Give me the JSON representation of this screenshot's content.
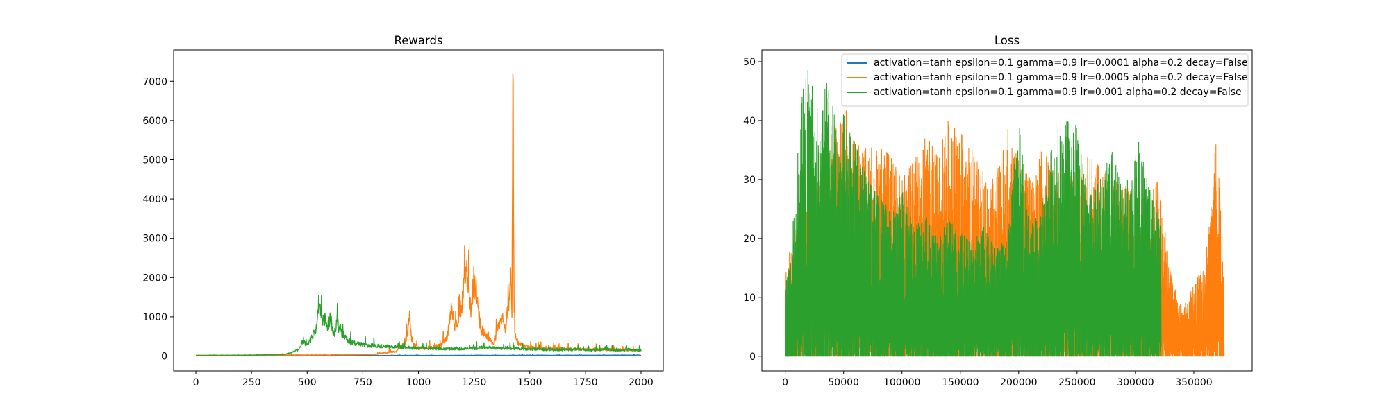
{
  "chart_data": [
    {
      "type": "line",
      "title": "Rewards",
      "xlabel": "",
      "ylabel": "",
      "xlim": [
        -100,
        2100
      ],
      "ylim": [
        -380,
        7800
      ],
      "xticks": [
        0,
        250,
        500,
        750,
        1000,
        1250,
        1500,
        1750,
        2000
      ],
      "yticks": [
        0,
        1000,
        2000,
        3000,
        4000,
        5000,
        6000,
        7000
      ],
      "legend": null,
      "series": [
        {
          "color": "#1f77b4",
          "x": [
            0,
            100,
            200,
            300,
            400,
            500,
            600,
            700,
            800,
            900,
            1000,
            1100,
            1200,
            1300,
            1400,
            1500,
            1600,
            1700,
            1800,
            1900,
            2000
          ],
          "values": [
            10,
            10,
            12,
            11,
            12,
            14,
            13,
            15,
            14,
            16,
            17,
            15,
            18,
            19,
            17,
            20,
            19,
            21,
            20,
            22,
            21
          ]
        },
        {
          "color": "#ff7f0e",
          "x": [
            0,
            200,
            400,
            600,
            800,
            900,
            940,
            955,
            960,
            965,
            975,
            1000,
            1050,
            1100,
            1130,
            1150,
            1165,
            1180,
            1200,
            1215,
            1225,
            1235,
            1250,
            1265,
            1280,
            1300,
            1320,
            1340,
            1360,
            1380,
            1390,
            1405,
            1415,
            1420,
            1425,
            1428,
            1430,
            1433,
            1440,
            1450,
            1480,
            1520,
            1560,
            1600,
            1650,
            1700,
            1750,
            1800,
            1850,
            1900,
            1950,
            2000
          ],
          "values": [
            20,
            22,
            25,
            28,
            40,
            120,
            350,
            650,
            1000,
            600,
            320,
            200,
            220,
            260,
            500,
            1250,
            700,
            1000,
            1450,
            2200,
            1700,
            1200,
            2000,
            1300,
            700,
            550,
            400,
            300,
            800,
            1000,
            650,
            1350,
            2100,
            900,
            7450,
            3000,
            1200,
            550,
            420,
            320,
            240,
            210,
            200,
            190,
            185,
            180,
            175,
            170,
            165,
            160,
            155,
            150
          ]
        },
        {
          "color": "#2ca02c",
          "x": [
            0,
            200,
            400,
            460,
            480,
            500,
            520,
            540,
            555,
            565,
            575,
            590,
            605,
            620,
            635,
            650,
            665,
            680,
            700,
            730,
            780,
            850,
            900,
            1000,
            1100,
            1200,
            1300,
            1400,
            1500,
            1600,
            1700,
            1800,
            1850,
            1900,
            1950,
            2000
          ],
          "values": [
            15,
            18,
            40,
            150,
            380,
            260,
            450,
            700,
            1520,
            850,
            1050,
            700,
            980,
            520,
            850,
            600,
            520,
            420,
            350,
            300,
            270,
            250,
            230,
            200,
            190,
            180,
            220,
            200,
            180,
            160,
            170,
            150,
            180,
            130,
            170,
            140
          ]
        }
      ]
    },
    {
      "type": "line",
      "title": "Loss",
      "xlabel": "",
      "ylabel": "",
      "xlim": [
        -20000,
        400000
      ],
      "ylim": [
        -2.5,
        52.0
      ],
      "xticks": [
        0,
        50000,
        100000,
        150000,
        200000,
        250000,
        300000,
        350000
      ],
      "yticks": [
        0,
        10,
        20,
        30,
        40,
        50
      ],
      "legend": "upper right",
      "series": [
        {
          "name": "activation=tanh epsilon=0.1 gamma=0.9 lr=0.0001 alpha=0.2 decay=False",
          "color": "#1f77b4",
          "x": [
            0,
            3000
          ],
          "values": [
            0,
            8
          ]
        },
        {
          "name": "activation=tanh epsilon=0.1 gamma=0.9 lr=0.0005 alpha=0.2 decay=False",
          "color": "#ff7f0e",
          "x": [
            0,
            10000,
            20000,
            30000,
            40000,
            50000,
            60000,
            70000,
            80000,
            90000,
            100000,
            110000,
            120000,
            130000,
            140000,
            150000,
            160000,
            170000,
            180000,
            190000,
            200000,
            210000,
            220000,
            230000,
            240000,
            250000,
            260000,
            270000,
            280000,
            290000,
            300000,
            310000,
            320000,
            330000,
            340000,
            350000,
            360000,
            370000,
            376000
          ],
          "values": [
            15,
            22,
            28,
            32,
            38,
            43,
            37,
            35,
            36,
            34,
            30,
            33,
            38,
            34,
            41,
            38,
            35,
            32,
            30,
            39,
            33,
            30,
            35,
            32,
            30,
            31,
            34,
            32,
            30,
            29,
            28,
            27,
            30,
            14,
            8,
            12,
            16,
            39,
            10
          ]
        },
        {
          "name": "activation=tanh epsilon=0.1 gamma=0.9 lr=0.001 alpha=0.2 decay=False",
          "color": "#2ca02c",
          "x": [
            0,
            5000,
            10000,
            15000,
            20000,
            25000,
            30000,
            35000,
            40000,
            45000,
            50000,
            55000,
            60000,
            70000,
            80000,
            90000,
            100000,
            110000,
            120000,
            130000,
            140000,
            150000,
            160000,
            170000,
            180000,
            190000,
            200000,
            210000,
            220000,
            230000,
            240000,
            250000,
            260000,
            270000,
            280000,
            290000,
            300000,
            310000,
            322000
          ],
          "values": [
            12,
            16,
            35,
            45,
            49,
            44,
            40,
            47,
            43,
            39,
            41,
            38,
            36,
            30,
            27,
            25,
            28,
            22,
            24,
            20,
            23,
            21,
            19,
            22,
            18,
            20,
            40,
            22,
            25,
            38,
            40,
            39,
            28,
            30,
            35,
            27,
            39,
            30,
            22
          ]
        }
      ]
    }
  ]
}
